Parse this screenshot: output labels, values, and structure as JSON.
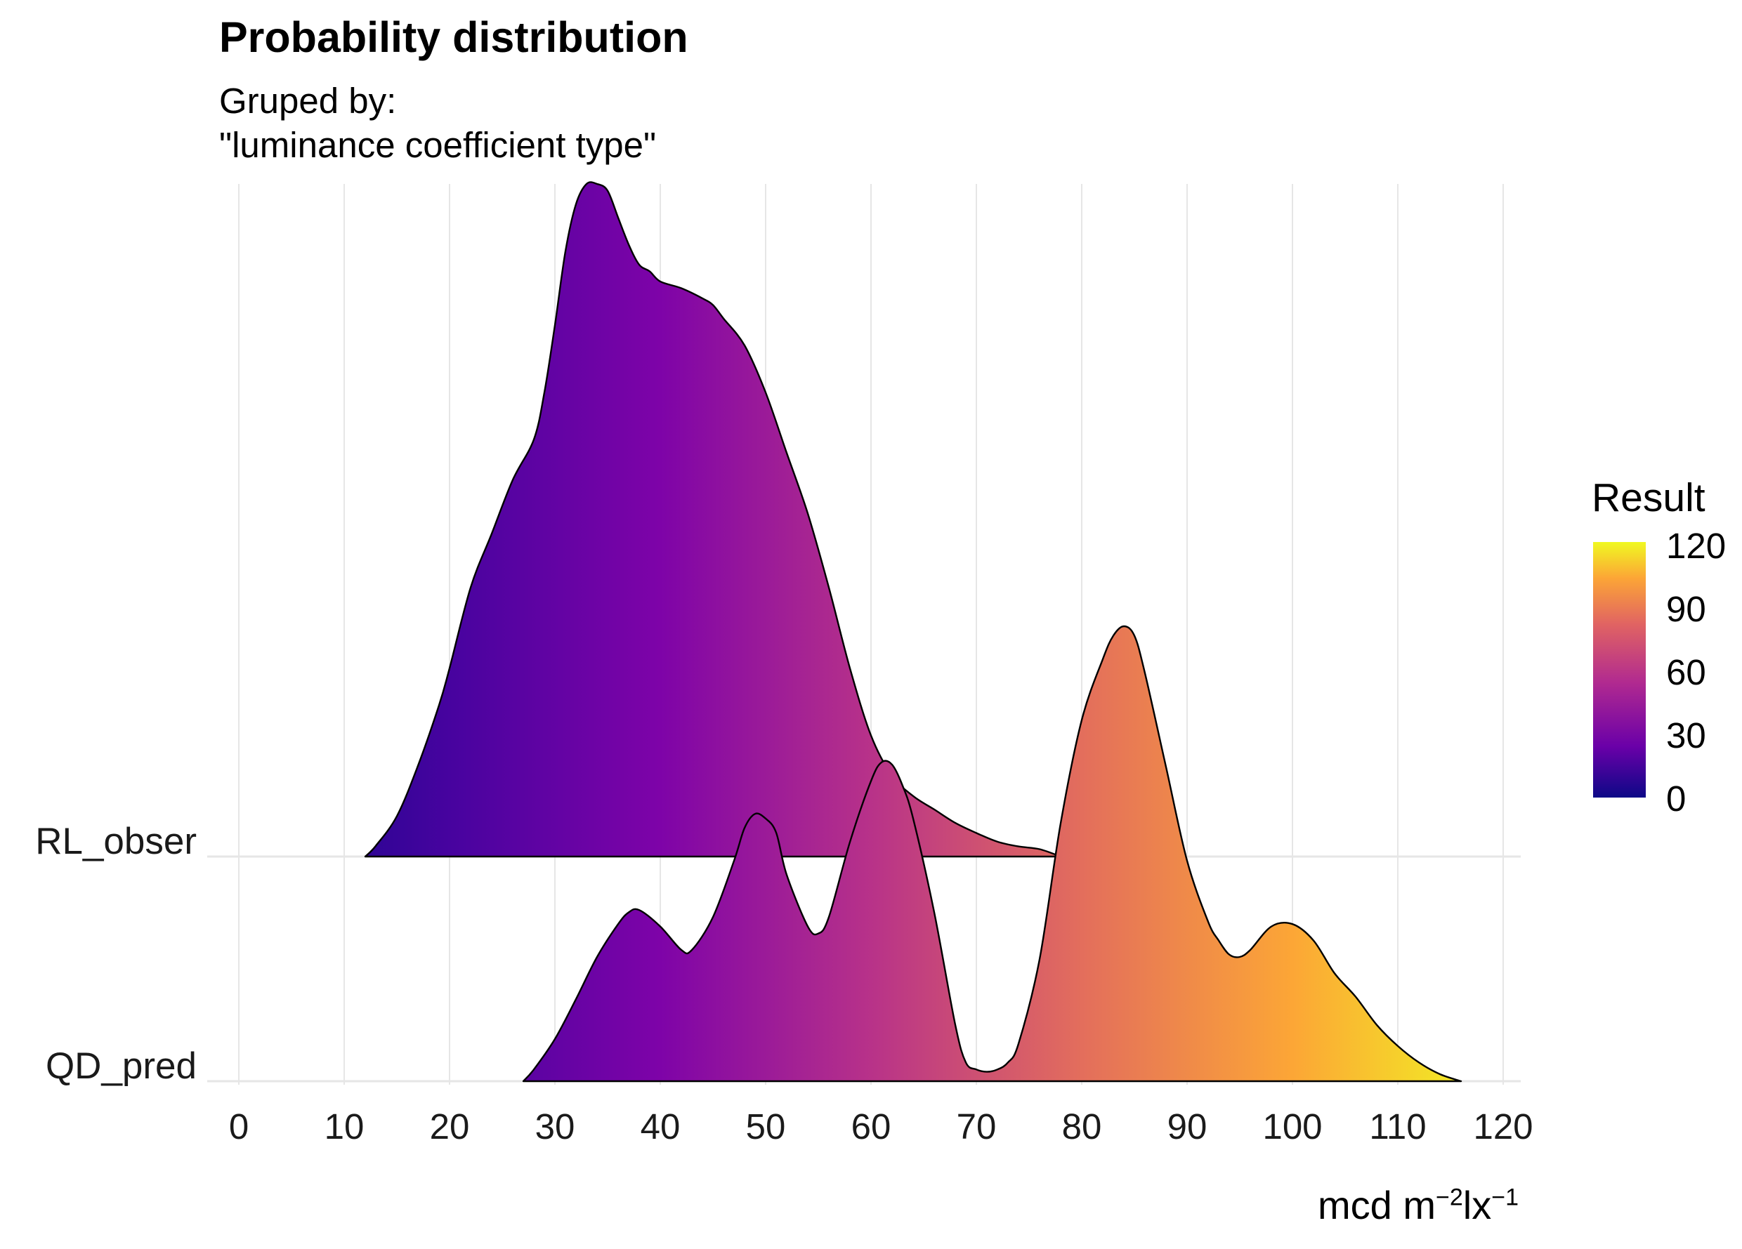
{
  "chart_data": {
    "type": "ridgeline-density",
    "title": "Probability distribution",
    "subtitle_lines": [
      "Gruped by:",
      "\"luminance coefficient type\""
    ],
    "xlabel": "mcd m",
    "xlabel_exp1": "−2",
    "xlabel_mid": "lx",
    "xlabel_exp2": "−1",
    "ylabel": "",
    "xlim": [
      0,
      120
    ],
    "x_ticks": [
      0,
      10,
      20,
      30,
      40,
      50,
      60,
      70,
      80,
      90,
      100,
      110,
      120
    ],
    "x_tick_labels": [
      "0",
      "10",
      "20",
      "30",
      "40",
      "50",
      "60",
      "70",
      "80",
      "90",
      "100",
      "110",
      "120"
    ],
    "categories": [
      "RL_obser",
      "QD_pred"
    ],
    "fill_by": "x value",
    "legend": {
      "title": "Result",
      "position": "right",
      "labels": [
        "120",
        "90",
        "60",
        "30",
        "0"
      ],
      "values": [
        120,
        90,
        60,
        30,
        0
      ]
    },
    "series": [
      {
        "name": "RL_obser",
        "x_range": [
          12,
          78
        ],
        "points": [
          [
            12,
            0.0
          ],
          [
            13,
            0.016
          ],
          [
            15,
            0.06
          ],
          [
            17,
            0.135
          ],
          [
            19,
            0.225
          ],
          [
            20,
            0.28
          ],
          [
            22,
            0.4
          ],
          [
            24,
            0.48
          ],
          [
            26,
            0.56
          ],
          [
            28,
            0.62
          ],
          [
            29,
            0.69
          ],
          [
            30,
            0.79
          ],
          [
            31,
            0.9
          ],
          [
            32,
            0.97
          ],
          [
            33,
            1.0
          ],
          [
            34,
            1.0
          ],
          [
            35,
            0.99
          ],
          [
            36,
            0.95
          ],
          [
            37,
            0.91
          ],
          [
            38,
            0.88
          ],
          [
            39,
            0.87
          ],
          [
            40,
            0.855
          ],
          [
            42,
            0.845
          ],
          [
            44,
            0.83
          ],
          [
            45,
            0.82
          ],
          [
            46,
            0.8
          ],
          [
            48,
            0.76
          ],
          [
            50,
            0.69
          ],
          [
            52,
            0.6
          ],
          [
            54,
            0.51
          ],
          [
            56,
            0.4
          ],
          [
            58,
            0.28
          ],
          [
            60,
            0.18
          ],
          [
            62,
            0.12
          ],
          [
            64,
            0.09
          ],
          [
            66,
            0.07
          ],
          [
            68,
            0.05
          ],
          [
            70,
            0.035
          ],
          [
            72,
            0.022
          ],
          [
            74,
            0.015
          ],
          [
            76,
            0.011
          ],
          [
            78,
            0.0
          ]
        ]
      },
      {
        "name": "QD_pred",
        "x_range": [
          27,
          116
        ],
        "points": [
          [
            27,
            0.0
          ],
          [
            28,
            0.025
          ],
          [
            30,
            0.09
          ],
          [
            32,
            0.175
          ],
          [
            34,
            0.265
          ],
          [
            36,
            0.335
          ],
          [
            37,
            0.36
          ],
          [
            38,
            0.365
          ],
          [
            40,
            0.33
          ],
          [
            42,
            0.28
          ],
          [
            43,
            0.28
          ],
          [
            45,
            0.35
          ],
          [
            47,
            0.47
          ],
          [
            48,
            0.54
          ],
          [
            49,
            0.57
          ],
          [
            50,
            0.56
          ],
          [
            51,
            0.53
          ],
          [
            52,
            0.44
          ],
          [
            54,
            0.33
          ],
          [
            55,
            0.315
          ],
          [
            56,
            0.35
          ],
          [
            58,
            0.51
          ],
          [
            60,
            0.64
          ],
          [
            61,
            0.68
          ],
          [
            62,
            0.675
          ],
          [
            63,
            0.63
          ],
          [
            64,
            0.56
          ],
          [
            66,
            0.36
          ],
          [
            68,
            0.12
          ],
          [
            69,
            0.04
          ],
          [
            70,
            0.025
          ],
          [
            71,
            0.02
          ],
          [
            72,
            0.025
          ],
          [
            73,
            0.04
          ],
          [
            74,
            0.08
          ],
          [
            76,
            0.26
          ],
          [
            78,
            0.55
          ],
          [
            80,
            0.77
          ],
          [
            82,
            0.9
          ],
          [
            83,
            0.95
          ],
          [
            84,
            0.97
          ],
          [
            85,
            0.95
          ],
          [
            86,
            0.87
          ],
          [
            88,
            0.67
          ],
          [
            90,
            0.47
          ],
          [
            92,
            0.34
          ],
          [
            93,
            0.3
          ],
          [
            94,
            0.27
          ],
          [
            95,
            0.265
          ],
          [
            96,
            0.28
          ],
          [
            98,
            0.33
          ],
          [
            100,
            0.335
          ],
          [
            102,
            0.3
          ],
          [
            104,
            0.23
          ],
          [
            106,
            0.18
          ],
          [
            108,
            0.12
          ],
          [
            110,
            0.075
          ],
          [
            112,
            0.04
          ],
          [
            114,
            0.015
          ],
          [
            116,
            0.0
          ]
        ]
      }
    ]
  }
}
